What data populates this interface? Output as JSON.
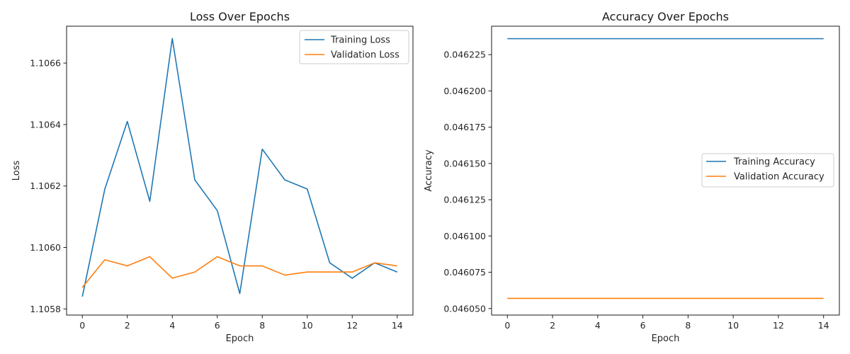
{
  "chart_data": [
    {
      "type": "line",
      "title": "Loss Over Epochs",
      "xlabel": "Epoch",
      "ylabel": "Loss",
      "xlim": [
        -0.7,
        14.7
      ],
      "ylim": [
        1.10578,
        1.10672
      ],
      "x": [
        0,
        1,
        2,
        3,
        4,
        5,
        6,
        7,
        8,
        9,
        10,
        11,
        12,
        13,
        14
      ],
      "xticks": [
        0,
        2,
        4,
        6,
        8,
        10,
        12,
        14
      ],
      "yticks": [
        1.1058,
        1.106,
        1.1062,
        1.1064,
        1.1066
      ],
      "yticks_labels": [
        "1.1058",
        "1.1060",
        "1.1062",
        "1.1064",
        "1.1066"
      ],
      "legend_position": "top-right",
      "grid": false,
      "series": [
        {
          "name": "Training Loss",
          "color": "#1f77b4",
          "values": [
            1.10584,
            1.10619,
            1.10641,
            1.10615,
            1.10668,
            1.10622,
            1.10612,
            1.10585,
            1.10632,
            1.10622,
            1.10619,
            1.10595,
            1.1059,
            1.10595,
            1.10592
          ]
        },
        {
          "name": "Validation Loss",
          "color": "#ff7f0e",
          "values": [
            1.10587,
            1.10596,
            1.10594,
            1.10597,
            1.1059,
            1.10592,
            1.10597,
            1.10594,
            1.10594,
            1.10591,
            1.10592,
            1.10592,
            1.10592,
            1.10595,
            1.10594
          ]
        }
      ]
    },
    {
      "type": "line",
      "title": "Accuracy Over Epochs",
      "xlabel": "Epoch",
      "ylabel": "Accuracy",
      "xlim": [
        -0.7,
        14.7
      ],
      "ylim": [
        0.0460455,
        0.0462446
      ],
      "x": [
        0,
        1,
        2,
        3,
        4,
        5,
        6,
        7,
        8,
        9,
        10,
        11,
        12,
        13,
        14
      ],
      "xticks": [
        0,
        2,
        4,
        6,
        8,
        10,
        12,
        14
      ],
      "yticks": [
        0.04605,
        0.046075,
        0.0461,
        0.046125,
        0.04615,
        0.046175,
        0.0462,
        0.046225
      ],
      "yticks_labels": [
        "0.046050",
        "0.046075",
        "0.046100",
        "0.046125",
        "0.046150",
        "0.046175",
        "0.046200",
        "0.046225"
      ],
      "legend_position": "center-right",
      "grid": false,
      "series": [
        {
          "name": "Training Accuracy",
          "color": "#1f77b4",
          "values": [
            0.046236,
            0.046236,
            0.046236,
            0.046236,
            0.046236,
            0.046236,
            0.046236,
            0.046236,
            0.046236,
            0.046236,
            0.046236,
            0.046236,
            0.046236,
            0.046236,
            0.046236
          ]
        },
        {
          "name": "Validation Accuracy",
          "color": "#ff7f0e",
          "values": [
            0.046057,
            0.046057,
            0.046057,
            0.046057,
            0.046057,
            0.046057,
            0.046057,
            0.046057,
            0.046057,
            0.046057,
            0.046057,
            0.046057,
            0.046057,
            0.046057,
            0.046057
          ]
        }
      ]
    }
  ]
}
